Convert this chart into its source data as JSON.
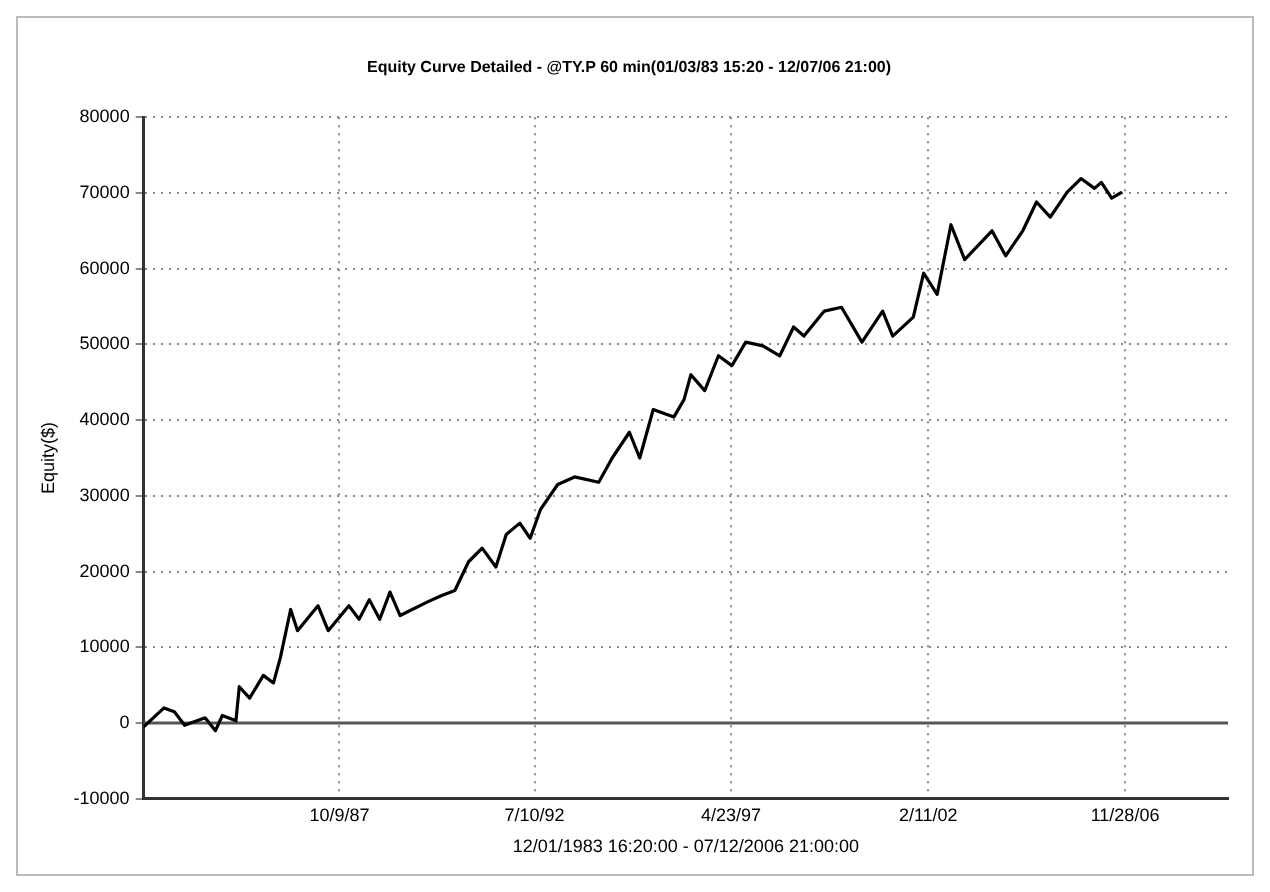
{
  "chart_data": {
    "type": "line",
    "title": "Equity Curve Detailed - @TY.P 60 min(01/03/83 15:20 - 12/07/06 21:00)",
    "xlabel": "12/01/1983 16:20:00 - 07/12/2006 21:00:00",
    "ylabel": "Equity($)",
    "x": [
      "1983-01",
      "1983-07",
      "1983-10",
      "1984-01",
      "1984-07",
      "1984-10",
      "1984-12",
      "1985-04",
      "1985-05",
      "1985-08",
      "1985-12",
      "1986-03",
      "1986-05",
      "1986-08",
      "1986-10",
      "1987-04",
      "1987-07",
      "1988-01",
      "1988-04",
      "1988-07",
      "1988-10",
      "1989-01",
      "1989-04",
      "1989-12",
      "1990-04",
      "1990-08",
      "1990-12",
      "1991-04",
      "1991-08",
      "1991-11",
      "1992-03",
      "1992-06",
      "1992-09",
      "1993-02",
      "1993-07",
      "1994-02",
      "1994-06",
      "1994-11",
      "1995-02",
      "1995-06",
      "1995-12",
      "1996-03",
      "1996-05",
      "1996-09",
      "1997-01",
      "1997-05",
      "1997-09",
      "1998-02",
      "1998-07",
      "1998-11",
      "1999-02",
      "1999-08",
      "2000-01",
      "2000-07",
      "2001-01",
      "2001-04",
      "2001-10",
      "2002-01",
      "2002-05",
      "2002-09",
      "2003-01",
      "2003-09",
      "2004-01",
      "2004-06",
      "2004-10",
      "2005-02",
      "2005-07",
      "2005-11",
      "2006-03",
      "2006-05",
      "2006-08",
      "2006-11"
    ],
    "series": [
      {
        "color": "#000000",
        "values": [
          -500,
          2000,
          1500,
          -300,
          700,
          -1000,
          1000,
          300,
          4800,
          3300,
          6300,
          5300,
          8600,
          15000,
          12200,
          15500,
          12200,
          15500,
          13700,
          16300,
          13700,
          17300,
          14200,
          16000,
          16800,
          17500,
          21300,
          23100,
          20600,
          24900,
          26400,
          24400,
          28200,
          31500,
          32500,
          31800,
          35000,
          38400,
          35000,
          41400,
          40400,
          42700,
          46000,
          43900,
          48500,
          47200,
          50300,
          49800,
          48500,
          52300,
          51100,
          54400,
          54900,
          50300,
          54400,
          51100,
          53600,
          59400,
          56600,
          65800,
          61200,
          65000,
          61700,
          65000,
          68800,
          66800,
          70100,
          71900,
          70600,
          71400,
          69300,
          70100
        ]
      }
    ],
    "xlim": [
      "1983-01-01",
      "2009-06-01"
    ],
    "xticks": [
      {
        "value": "1987-10-09",
        "label": "10/9/87"
      },
      {
        "value": "1992-07-10",
        "label": "7/10/92"
      },
      {
        "value": "1997-04-23",
        "label": "4/23/97"
      },
      {
        "value": "2002-02-11",
        "label": "2/11/02"
      },
      {
        "value": "2006-11-28",
        "label": "11/28/06"
      }
    ],
    "ylim": [
      -10000,
      80000
    ],
    "yticks": [
      -10000,
      0,
      10000,
      20000,
      30000,
      40000,
      50000,
      60000,
      70000,
      80000
    ],
    "ref_lines": [
      {
        "axis": "y",
        "value": 0,
        "color": "#555555",
        "line_style": "solid"
      }
    ],
    "grid": true,
    "legend": false,
    "marker": "none",
    "line_style": "solid"
  }
}
